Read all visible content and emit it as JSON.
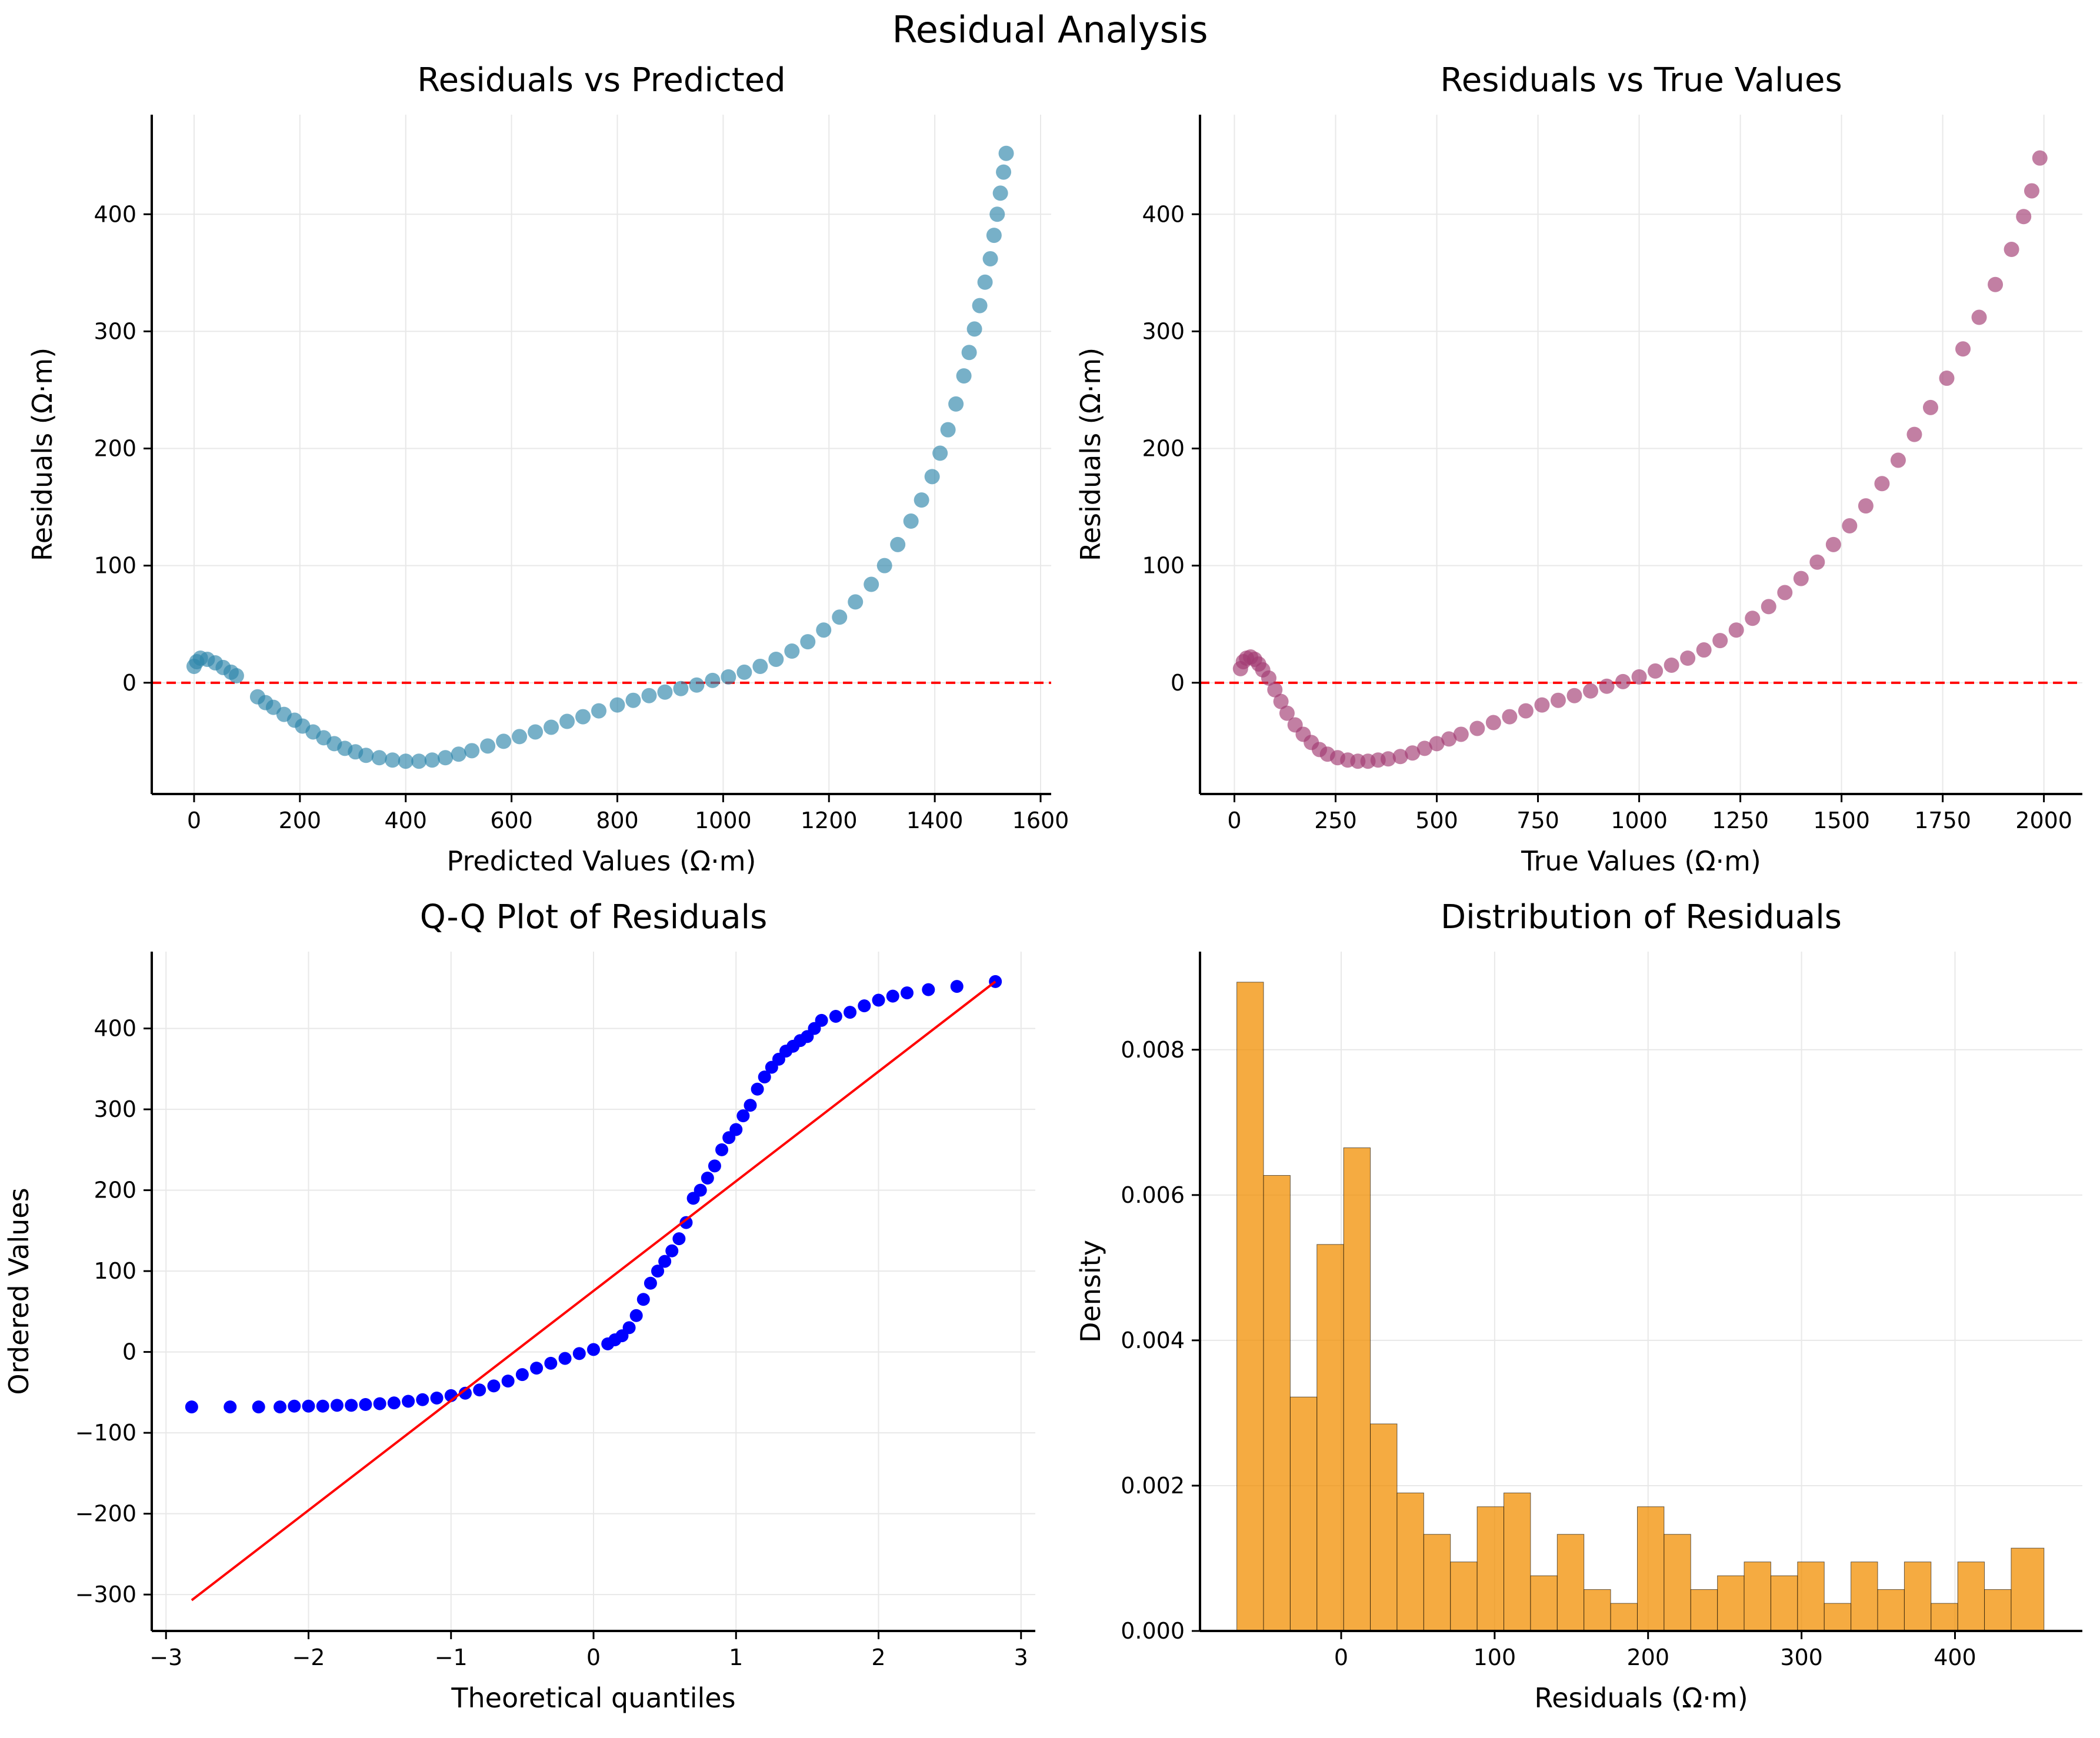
{
  "figure": {
    "title": "Residual Analysis"
  },
  "chart_data": [
    {
      "id": "resid-vs-pred",
      "type": "scatter",
      "title": "Residuals vs Predicted",
      "xlabel": "Predicted Values (Ω·m)",
      "ylabel": "Residuals (Ω·m)",
      "xlim": [
        -80,
        1620
      ],
      "ylim": [
        -95,
        485
      ],
      "xticks": [
        0,
        200,
        400,
        600,
        800,
        1000,
        1200,
        1400,
        1600
      ],
      "yticks": [
        0,
        100,
        200,
        300,
        400
      ],
      "grid": true,
      "color": "#2E86AB",
      "hline": {
        "y": 0,
        "color": "#FF0000",
        "style": "dashed"
      },
      "x": [
        0,
        5,
        12,
        25,
        40,
        55,
        70,
        80,
        120,
        135,
        150,
        170,
        190,
        205,
        225,
        245,
        265,
        285,
        305,
        325,
        350,
        375,
        400,
        425,
        450,
        475,
        500,
        525,
        555,
        585,
        615,
        645,
        675,
        705,
        735,
        765,
        800,
        830,
        860,
        890,
        920,
        950,
        980,
        1010,
        1040,
        1070,
        1100,
        1130,
        1160,
        1190,
        1220,
        1250,
        1280,
        1305,
        1330,
        1355,
        1375,
        1395,
        1410,
        1425,
        1440,
        1455,
        1465,
        1475,
        1485,
        1495,
        1505,
        1512,
        1518,
        1524,
        1530,
        1535
      ],
      "y": [
        14,
        18,
        21,
        20,
        17,
        13,
        9,
        6,
        -12,
        -17,
        -21,
        -27,
        -32,
        -37,
        -42,
        -47,
        -52,
        -56,
        -59,
        -62,
        -64,
        -66,
        -67,
        -67,
        -66,
        -64,
        -61,
        -58,
        -54,
        -50,
        -46,
        -42,
        -38,
        -33,
        -29,
        -24,
        -19,
        -15,
        -11,
        -8,
        -5,
        -2,
        2,
        5,
        9,
        14,
        20,
        27,
        35,
        45,
        56,
        69,
        84,
        100,
        118,
        138,
        156,
        176,
        196,
        216,
        238,
        262,
        282,
        302,
        322,
        342,
        362,
        382,
        400,
        418,
        436,
        452
      ]
    },
    {
      "id": "resid-vs-true",
      "type": "scatter",
      "title": "Residuals vs True Values",
      "xlabel": "True Values (Ω·m)",
      "ylabel": "Residuals (Ω·m)",
      "xlim": [
        -85,
        2095
      ],
      "ylim": [
        -95,
        485
      ],
      "xticks": [
        0,
        250,
        500,
        750,
        1000,
        1250,
        1500,
        1750,
        2000
      ],
      "yticks": [
        0,
        100,
        200,
        300,
        400
      ],
      "grid": true,
      "color": "#A23B72",
      "hline": {
        "y": 0,
        "color": "#FF0000",
        "style": "dashed"
      },
      "x": [
        15,
        22,
        30,
        40,
        50,
        60,
        70,
        85,
        100,
        115,
        130,
        150,
        170,
        190,
        210,
        230,
        255,
        280,
        305,
        330,
        355,
        380,
        410,
        440,
        470,
        500,
        530,
        560,
        600,
        640,
        680,
        720,
        760,
        800,
        840,
        880,
        920,
        960,
        1000,
        1040,
        1080,
        1120,
        1160,
        1200,
        1240,
        1280,
        1320,
        1360,
        1400,
        1440,
        1480,
        1520,
        1560,
        1600,
        1640,
        1680,
        1720,
        1760,
        1800,
        1840,
        1880,
        1920,
        1950,
        1970,
        1990
      ],
      "y": [
        12,
        18,
        21,
        22,
        20,
        16,
        11,
        4,
        -6,
        -16,
        -26,
        -36,
        -44,
        -51,
        -57,
        -61,
        -64,
        -66,
        -67,
        -67,
        -66,
        -65,
        -63,
        -60,
        -56,
        -52,
        -48,
        -44,
        -39,
        -34,
        -29,
        -24,
        -19,
        -15,
        -11,
        -7,
        -3,
        1,
        5,
        10,
        15,
        21,
        28,
        36,
        45,
        55,
        65,
        77,
        89,
        103,
        118,
        134,
        151,
        170,
        190,
        212,
        235,
        260,
        285,
        312,
        340,
        370,
        398,
        420,
        448
      ]
    },
    {
      "id": "qq-plot",
      "type": "scatter",
      "title": "Q-Q Plot of Residuals",
      "xlabel": "Theoretical quantiles",
      "ylabel": "Ordered Values",
      "xlim": [
        -3.1,
        3.1
      ],
      "ylim": [
        -345,
        495
      ],
      "xticks": [
        -3,
        -2,
        -1,
        0,
        1,
        2,
        3
      ],
      "yticks": [
        -300,
        -200,
        -100,
        0,
        100,
        200,
        300,
        400
      ],
      "grid": true,
      "color": "#0000FF",
      "fit_line": {
        "x": [
          -2.82,
          2.82
        ],
        "y": [
          -307,
          458
        ],
        "color": "#FF0000"
      },
      "x": [
        -2.82,
        -2.55,
        -2.35,
        -2.2,
        -2.1,
        -2.0,
        -1.9,
        -1.8,
        -1.7,
        -1.6,
        -1.5,
        -1.4,
        -1.3,
        -1.2,
        -1.1,
        -1.0,
        -0.9,
        -0.8,
        -0.7,
        -0.6,
        -0.5,
        -0.4,
        -0.3,
        -0.2,
        -0.1,
        0.0,
        0.1,
        0.15,
        0.2,
        0.25,
        0.3,
        0.35,
        0.4,
        0.45,
        0.5,
        0.55,
        0.6,
        0.65,
        0.7,
        0.75,
        0.8,
        0.85,
        0.9,
        0.95,
        1.0,
        1.05,
        1.1,
        1.15,
        1.2,
        1.25,
        1.3,
        1.35,
        1.4,
        1.45,
        1.5,
        1.55,
        1.6,
        1.7,
        1.8,
        1.9,
        2.0,
        2.1,
        2.2,
        2.35,
        2.55,
        2.82
      ],
      "y": [
        -68,
        -68,
        -68,
        -68,
        -67,
        -67,
        -67,
        -66,
        -66,
        -65,
        -64,
        -63,
        -61,
        -59,
        -57,
        -54,
        -51,
        -47,
        -42,
        -36,
        -28,
        -20,
        -14,
        -8,
        -2,
        3,
        10,
        15,
        20,
        30,
        45,
        65,
        85,
        100,
        112,
        125,
        140,
        160,
        190,
        200,
        215,
        230,
        250,
        265,
        275,
        292,
        305,
        325,
        340,
        352,
        362,
        372,
        378,
        385,
        390,
        400,
        410,
        415,
        420,
        428,
        435,
        440,
        444,
        448,
        452,
        458
      ]
    },
    {
      "id": "resid-hist",
      "type": "bar",
      "title": "Distribution of Residuals",
      "xlabel": "Residuals (Ω·m)",
      "ylabel": "Density",
      "xlim": [
        -92,
        483
      ],
      "ylim": [
        0,
        0.00935
      ],
      "xticks": [
        0,
        100,
        200,
        300,
        400
      ],
      "yticks": [
        0.0,
        0.002,
        0.004,
        0.006,
        0.008
      ],
      "ytick_labels": [
        "0.000",
        "0.002",
        "0.004",
        "0.006",
        "0.008"
      ],
      "grid": true,
      "color": "#F18F01",
      "bin_edges": [
        -68,
        -50.6,
        -33.2,
        -15.8,
        1.6,
        19.0,
        36.4,
        53.8,
        71.2,
        88.6,
        106.0,
        123.4,
        140.8,
        158.2,
        175.6,
        193.0,
        210.4,
        227.8,
        245.2,
        262.6,
        280.0,
        297.4,
        314.8,
        332.2,
        349.6,
        367.0,
        384.4,
        401.8,
        419.2,
        436.6,
        458
      ],
      "values": [
        0.00893,
        0.00627,
        0.00322,
        0.00532,
        0.00665,
        0.00285,
        0.0019,
        0.00133,
        0.00095,
        0.00171,
        0.0019,
        0.00076,
        0.00133,
        0.00057,
        0.00038,
        0.00171,
        0.00133,
        0.00057,
        0.00076,
        0.00095,
        0.00076,
        0.00095,
        0.00038,
        0.00095,
        0.00057,
        0.00095,
        0.00038,
        0.00095,
        0.00057,
        0.00114
      ]
    }
  ]
}
